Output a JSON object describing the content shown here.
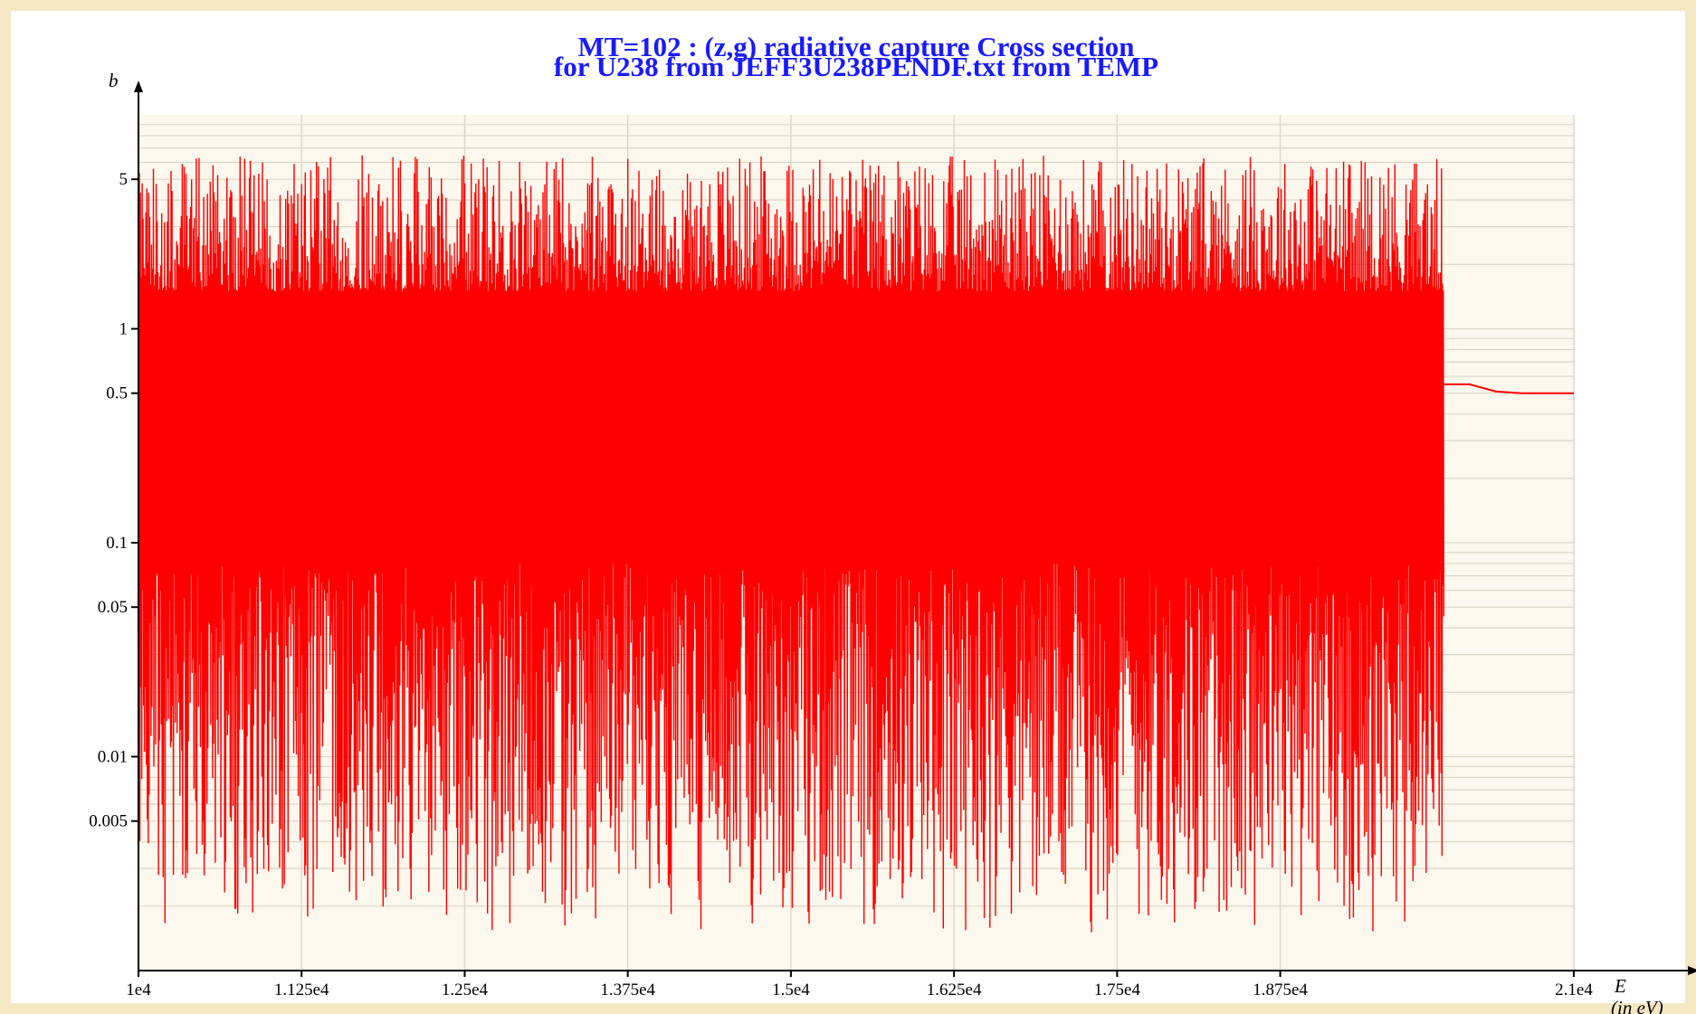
{
  "chart_data": {
    "type": "line",
    "title": [
      "MT=102 : (z,g) radiative capture Cross section",
      "for U238 from JEFF3U238PENDF.txt from TEMP"
    ],
    "xlabel": "E",
    "xlabel_unit": "(in eV)",
    "ylabel": "b",
    "x_scale": "linear",
    "y_scale": "log",
    "xlim": [
      10000,
      21000
    ],
    "ylim": [
      0.001,
      10
    ],
    "x_ticks": [
      10000,
      11250,
      12500,
      13750,
      15000,
      16250,
      17500,
      18750,
      21000
    ],
    "x_tick_labels": [
      "1e4",
      "1.125e4",
      "1.25e4",
      "1.375e4",
      "1.5e4",
      "1.625e4",
      "1.75e4",
      "1.875e4",
      "2.1e4"
    ],
    "y_ticks": [
      5,
      1,
      0.5,
      0.1,
      0.05,
      0.01,
      0.005
    ],
    "y_tick_labels": [
      "5",
      "1",
      "0.5",
      "0.1",
      "0.05",
      "0.01",
      "0.005"
    ],
    "grid": true,
    "legend": "none",
    "colors": {
      "series": "#ff0000",
      "title": "#1a1aff",
      "plot_background": "#fcf8ee",
      "grid": "#dcd6c4"
    },
    "series": [
      {
        "resonance_region": {
          "x_range": [
            10000,
            20000
          ],
          "peak_y_range": [
            1.5,
            6.5
          ],
          "valley_y_range": [
            0.0015,
            0.08
          ]
        },
        "x": [
          20000,
          20200,
          20400,
          20600,
          20800,
          21000
        ],
        "y": [
          0.55,
          0.55,
          0.51,
          0.5,
          0.5,
          0.5
        ]
      }
    ]
  }
}
